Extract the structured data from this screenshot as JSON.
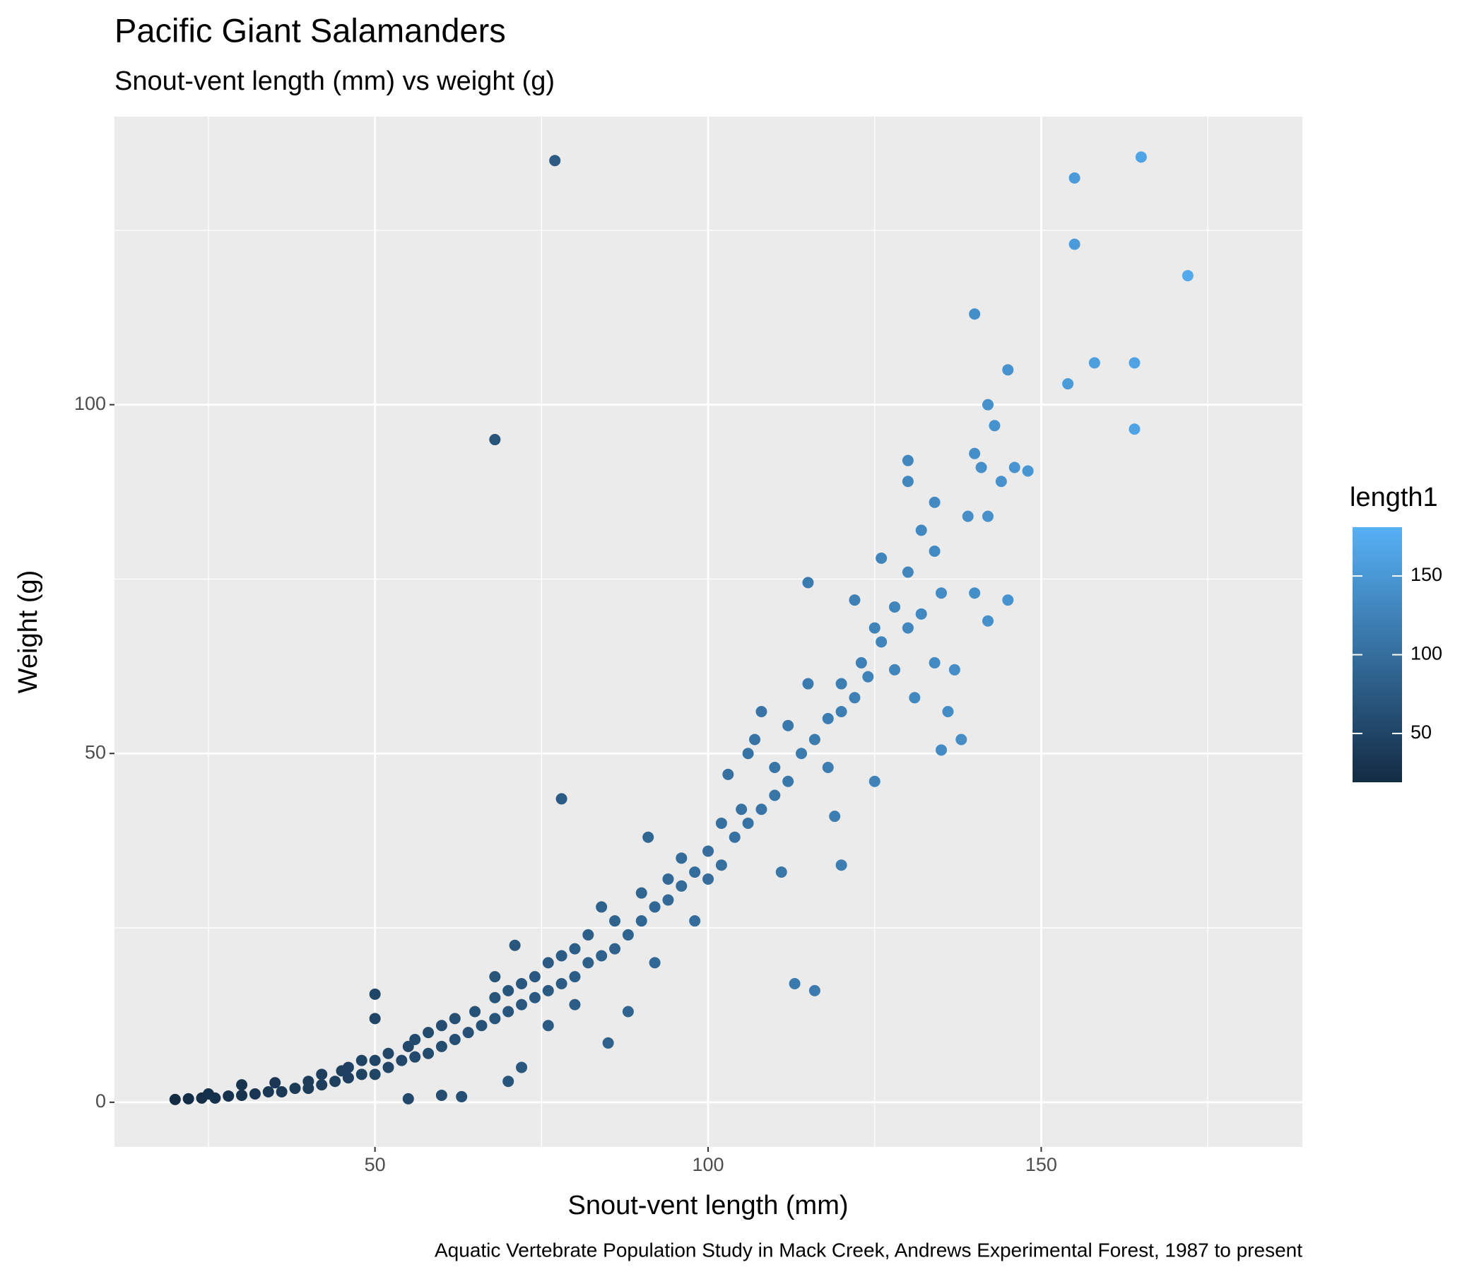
{
  "chart_data": {
    "type": "scatter",
    "title": "Pacific Giant Salamanders",
    "subtitle": "Snout-vent length (mm) vs weight (g)",
    "x_label": "Snout-vent length (mm)",
    "y_label": "Weight (g)",
    "caption": "Aquatic Vertebrate Population Study in Mack Creek, Andrews Experimental Forest, 1987 to present",
    "x": [
      20,
      22,
      24,
      25,
      26,
      28,
      30,
      30,
      32,
      34,
      35,
      36,
      38,
      40,
      40,
      42,
      42,
      44,
      45,
      46,
      46,
      48,
      48,
      50,
      50,
      50,
      50,
      52,
      52,
      54,
      55,
      55,
      56,
      56,
      58,
      58,
      60,
      60,
      60,
      62,
      62,
      63,
      64,
      65,
      66,
      68,
      68,
      68,
      70,
      70,
      70,
      71,
      72,
      72,
      72,
      74,
      74,
      76,
      76,
      76,
      78,
      78,
      78,
      80,
      80,
      80,
      82,
      82,
      84,
      84,
      85,
      86,
      86,
      88,
      88,
      90,
      90,
      91,
      92,
      92,
      94,
      94,
      96,
      96,
      98,
      98,
      100,
      100,
      102,
      102,
      103,
      104,
      105,
      106,
      106,
      107,
      108,
      108,
      110,
      110,
      111,
      112,
      112,
      113,
      114,
      115,
      115,
      116,
      116,
      118,
      118,
      119,
      120,
      120,
      120,
      122,
      122,
      123,
      124,
      125,
      125,
      126,
      126,
      128,
      128,
      130,
      130,
      130,
      130,
      131,
      132,
      132,
      134,
      134,
      134,
      135,
      135,
      136,
      137,
      138,
      139,
      140,
      140,
      140,
      141,
      142,
      142,
      142,
      143,
      144,
      145,
      145,
      146,
      148,
      154,
      155,
      155,
      158,
      164,
      164,
      165,
      172,
      68,
      77
    ],
    "values": [
      0.4,
      0.5,
      0.6,
      1.2,
      0.6,
      0.9,
      1,
      2.5,
      1.2,
      1.5,
      2.8,
      1.5,
      2,
      2,
      3,
      2.5,
      4,
      3,
      4.5,
      3.5,
      5,
      4,
      6,
      4,
      6,
      15.5,
      12,
      5,
      7,
      6,
      0.5,
      8,
      6.5,
      9,
      7,
      10,
      8,
      11,
      1,
      9,
      12,
      0.8,
      10,
      13,
      11,
      12,
      15,
      18,
      13,
      16,
      3,
      22.5,
      14,
      17,
      5,
      15,
      18,
      16,
      20,
      11,
      17,
      21,
      43.5,
      18,
      22,
      14,
      20,
      24,
      21,
      28,
      8.5,
      22,
      26,
      24,
      13,
      26,
      30,
      38,
      28,
      20,
      29,
      32,
      31,
      35,
      33,
      26,
      32,
      36,
      34,
      40,
      47,
      38,
      42,
      40,
      50,
      52,
      42,
      56,
      44,
      48,
      33,
      46,
      54,
      17,
      50,
      60,
      74.5,
      16,
      52,
      55,
      48,
      41,
      56,
      60,
      34,
      58,
      72,
      63,
      61,
      68,
      46,
      66,
      78,
      62,
      71,
      68,
      76,
      89,
      92,
      58,
      70,
      82,
      63,
      79,
      86,
      50.5,
      73,
      56,
      62,
      52,
      84,
      93,
      73,
      113,
      91,
      84,
      69,
      100,
      97,
      89,
      105,
      72,
      91,
      90.5,
      103,
      123,
      132.5,
      106,
      106,
      96.5,
      135.5,
      118.5,
      95,
      135
    ],
    "xlim": [
      10.9,
      189.2
    ],
    "xticks": [
      50,
      100,
      150
    ],
    "xminor": [
      25,
      75,
      125,
      175
    ],
    "ylim": [
      -6.4,
      141.3
    ],
    "yticks": [
      0,
      50,
      100
    ],
    "yminor": [
      25,
      75,
      125
    ],
    "grid": true,
    "color_scale": {
      "title": "length1",
      "colors": [
        "#132B43",
        "#56B1F7"
      ],
      "lim": [
        19,
        181
      ],
      "ticks": [
        50,
        100,
        150
      ]
    }
  }
}
